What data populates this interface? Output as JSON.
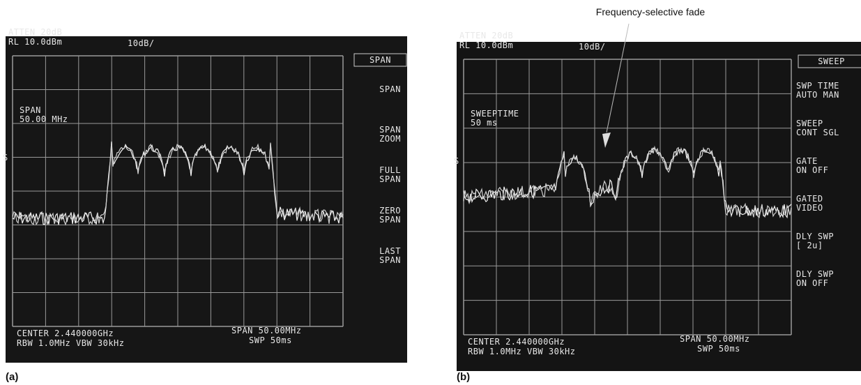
{
  "annotation": "Frequency-selective fade",
  "panels": [
    {
      "label": "(a)",
      "screen": {
        "top_left": [
          "ATTEN 20dB",
          "RL 10.0dBm"
        ],
        "scale": "10dB/",
        "softkey_title": "SPAN",
        "softkeys": [
          [
            "SPAN"
          ],
          [
            "SPAN",
            "ZOOM"
          ],
          [
            "FULL",
            "SPAN"
          ],
          [
            "ZERO",
            "SPAN"
          ],
          [
            "LAST",
            "SPAN"
          ]
        ],
        "readout": [
          "SPAN",
          "50.00 MHz"
        ],
        "marker": "S",
        "bottom_left": [
          "CENTER 2.440000GHz",
          "RBW 1.0MHz   VBW 30kHz"
        ],
        "bottom_right": [
          "SPAN 50.00MHz",
          "SWP 50ms"
        ]
      }
    },
    {
      "label": "(b)",
      "screen": {
        "top_left": [
          "ATTEN 20dB",
          "RL 10.0dBm"
        ],
        "scale": "10dB/",
        "softkey_title": "SWEEP",
        "softkeys": [
          [
            "SWP TIME",
            "AUTO MAN"
          ],
          [
            "SWEEP",
            "CONT SGL"
          ],
          [
            "GATE",
            "ON OFF"
          ],
          [
            "GATED",
            "VIDEO"
          ],
          [
            "DLY SWP",
            "[ 2u]"
          ],
          [
            "DLY SWP",
            "ON OFF"
          ]
        ],
        "readout": [
          "SWEEPTIME",
          "50 ms"
        ],
        "marker": "S",
        "bottom_left": [
          "CENTER 2.440000GHz",
          "RBW 1.0MHz   VBW 30kHz"
        ],
        "bottom_right": [
          "SPAN 50.00MHz",
          "SWP 50ms"
        ]
      }
    }
  ]
}
